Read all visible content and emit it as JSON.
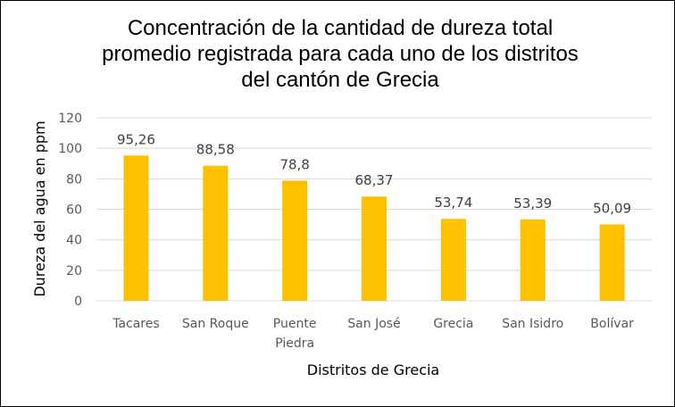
{
  "chart_data": {
    "type": "bar",
    "title_lines": [
      "Concentración de la cantidad de dureza total",
      "promedio registrada para cada uno de los distritos",
      "del cantón de Grecia"
    ],
    "xlabel": "Distritos de Grecia",
    "ylabel": "Dureza del agua en ppm",
    "categories": [
      [
        "Tacares"
      ],
      [
        "San Roque"
      ],
      [
        "Puente",
        "Piedra"
      ],
      [
        "San José"
      ],
      [
        "Grecia"
      ],
      [
        "San Isidro"
      ],
      [
        "Bolívar"
      ]
    ],
    "values": [
      95.26,
      88.58,
      78.8,
      68.37,
      53.74,
      53.39,
      50.09
    ],
    "data_labels": [
      "95,26",
      "88,58",
      "78,8",
      "68,37",
      "53,74",
      "53,39",
      "50,09"
    ],
    "yticks": [
      0,
      20,
      40,
      60,
      80,
      100,
      120
    ],
    "ylim": [
      0,
      120
    ],
    "grid": true,
    "legend": "none",
    "bar_color": "#FFC000",
    "grid_color": "#D9D9D9"
  }
}
